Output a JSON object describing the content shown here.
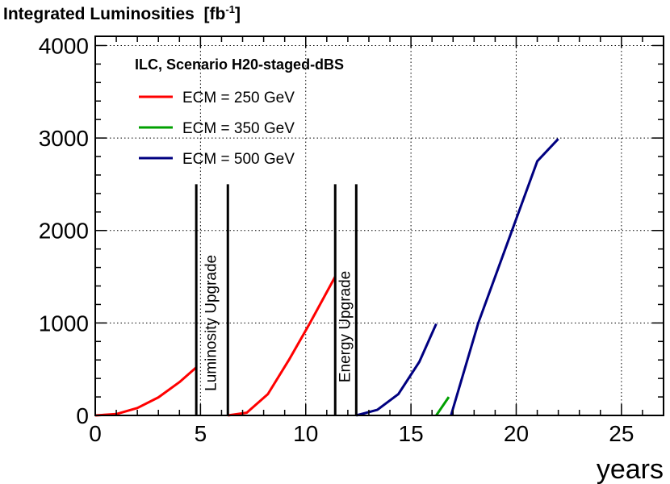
{
  "chart_data": {
    "type": "line",
    "title": "Integrated Luminosities",
    "title_unit_base": "[fb",
    "title_unit_exp": "-1",
    "title_unit_end": "]",
    "xlabel": "years",
    "ylabel": "",
    "xlim": [
      0,
      27
    ],
    "ylim": [
      0,
      4100
    ],
    "grid": true,
    "x_ticks": [
      0,
      5,
      10,
      15,
      20,
      25
    ],
    "x_tick_labels": [
      "0",
      "5",
      "10",
      "15",
      "20",
      "25"
    ],
    "y_ticks": [
      0,
      1000,
      2000,
      3000,
      4000
    ],
    "y_tick_labels": [
      "0",
      "1000",
      "2000",
      "3000",
      "4000"
    ],
    "legend_title": "ILC, Scenario H20-staged-dBS",
    "legend_position": "top-left",
    "series": [
      {
        "name": "ECM = 250 GeV",
        "color": "#ff0000",
        "segments": [
          [
            [
              0,
              0
            ],
            [
              1,
              15
            ],
            [
              2,
              80
            ],
            [
              3,
              195
            ],
            [
              4,
              360
            ],
            [
              4.8,
              520
            ]
          ],
          [
            [
              6.3,
              0
            ],
            [
              7.2,
              30
            ],
            [
              8.2,
              230
            ],
            [
              9.2,
              600
            ],
            [
              10.2,
              1000
            ],
            [
              11.4,
              1500
            ]
          ]
        ]
      },
      {
        "name": "ECM = 350 GeV",
        "color": "#00a000",
        "segments": [
          [
            [
              16.2,
              0
            ],
            [
              16.8,
              200
            ]
          ]
        ]
      },
      {
        "name": "ECM = 500 GeV",
        "color": "#000080",
        "segments": [
          [
            [
              12.4,
              0
            ],
            [
              13.4,
              60
            ],
            [
              14.4,
              230
            ],
            [
              15.4,
              580
            ],
            [
              16.2,
              990
            ]
          ],
          [
            [
              16.9,
              0
            ],
            [
              18.2,
              1000
            ],
            [
              19.8,
              2000
            ],
            [
              21.0,
              2750
            ],
            [
              22.0,
              2990
            ]
          ]
        ]
      }
    ],
    "markers": [
      {
        "x": 4.8,
        "y_top": 2500
      },
      {
        "x": 6.3,
        "y_top": 2500
      },
      {
        "x": 11.4,
        "y_top": 2500
      },
      {
        "x": 12.4,
        "y_top": 2500
      }
    ],
    "annotations": [
      {
        "text": "Luminosity Upgrade",
        "x": 5.55,
        "y": 1000
      },
      {
        "text": "Energy Upgrade",
        "x": 11.9,
        "y": 960
      }
    ]
  }
}
